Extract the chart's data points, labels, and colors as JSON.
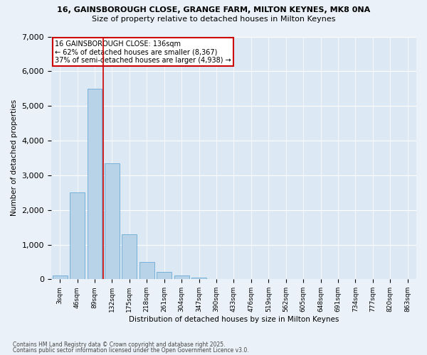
{
  "title_line1": "16, GAINSBOROUGH CLOSE, GRANGE FARM, MILTON KEYNES, MK8 0NA",
  "title_line2": "Size of property relative to detached houses in Milton Keynes",
  "xlabel": "Distribution of detached houses by size in Milton Keynes",
  "ylabel": "Number of detached properties",
  "categories": [
    "3sqm",
    "46sqm",
    "89sqm",
    "132sqm",
    "175sqm",
    "218sqm",
    "261sqm",
    "304sqm",
    "347sqm",
    "390sqm",
    "433sqm",
    "476sqm",
    "519sqm",
    "562sqm",
    "605sqm",
    "648sqm",
    "691sqm",
    "734sqm",
    "777sqm",
    "820sqm",
    "863sqm"
  ],
  "values": [
    100,
    2500,
    5500,
    3350,
    1300,
    500,
    220,
    100,
    50,
    0,
    0,
    0,
    0,
    0,
    0,
    0,
    0,
    0,
    0,
    0,
    0
  ],
  "bar_color": "#b8d3e8",
  "bar_edge_color": "#6aaad4",
  "plot_bg_color": "#dce9f5",
  "fig_bg_color": "#eaf1f8",
  "grid_color": "#ffffff",
  "vline_color": "#cc0000",
  "vline_x": 2.5,
  "annotation_text": "16 GAINSBOROUGH CLOSE: 136sqm\n← 62% of detached houses are smaller (8,367)\n37% of semi-detached houses are larger (4,938) →",
  "annotation_box_edgecolor": "#cc0000",
  "ylim": [
    0,
    7000
  ],
  "yticks": [
    0,
    1000,
    2000,
    3000,
    4000,
    5000,
    6000,
    7000
  ],
  "footnote1": "Contains HM Land Registry data © Crown copyright and database right 2025.",
  "footnote2": "Contains public sector information licensed under the Open Government Licence v3.0."
}
